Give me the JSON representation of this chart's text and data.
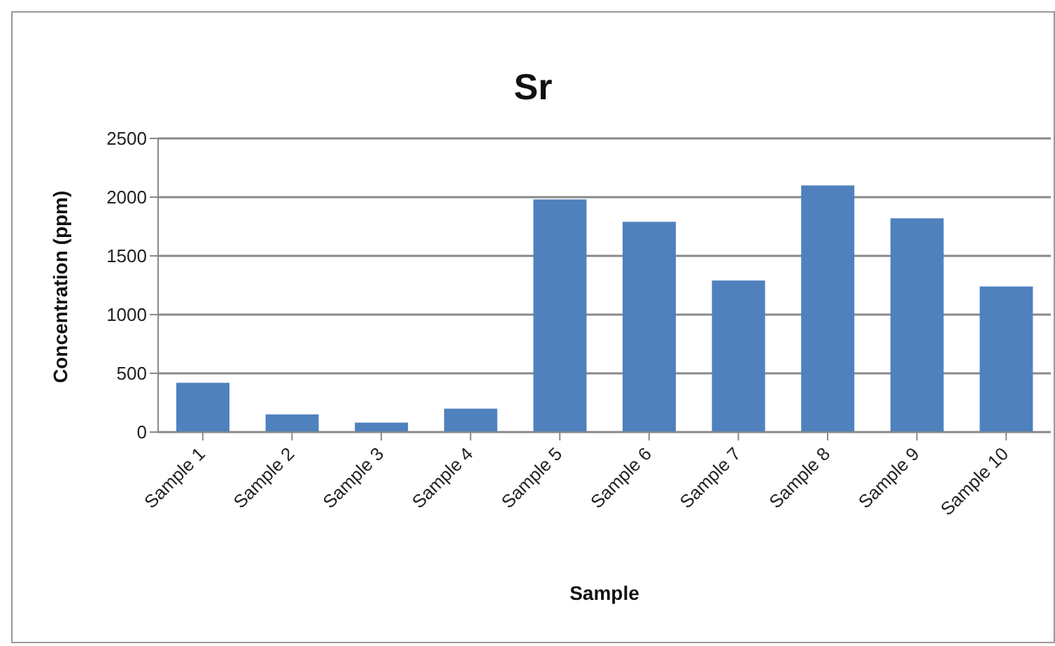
{
  "chart_data": {
    "type": "bar",
    "title": "Sr",
    "xlabel": "Sample",
    "ylabel": "Concentration (ppm)",
    "categories": [
      "Sample 1",
      "Sample 2",
      "Sample 3",
      "Sample 4",
      "Sample 5",
      "Sample 6",
      "Sample 7",
      "Sample 8",
      "Sample 9",
      "Sample 10"
    ],
    "values": [
      420,
      150,
      80,
      200,
      1980,
      1790,
      1290,
      2100,
      1820,
      1240
    ],
    "color": "#4f81bd",
    "ylim": [
      0,
      2500
    ],
    "yticks": [
      0,
      500,
      1000,
      1500,
      2000,
      2500
    ],
    "grid": "y",
    "legend": false
  }
}
